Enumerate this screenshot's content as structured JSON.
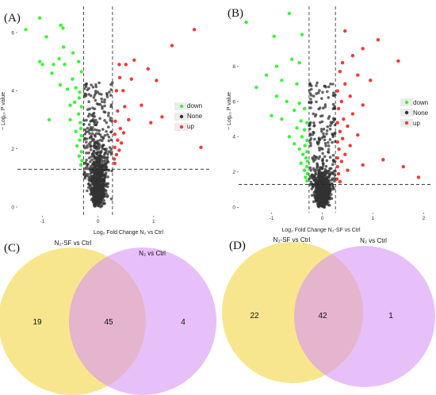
{
  "panels": {
    "A": "(A)",
    "B": "(B)",
    "C": "(C)",
    "D": "(D)"
  },
  "legend": {
    "items": [
      {
        "label": "down",
        "color": "#3df23d"
      },
      {
        "label": "None",
        "color": "#333333"
      },
      {
        "label": "up",
        "color": "#ee3b3b"
      }
    ]
  },
  "venn": {
    "C": {
      "left_title": "N₂-SF vs Ctrl",
      "right_title": "N₂ vs Ctrl",
      "left_only": "19",
      "both": "45",
      "right_only": "4"
    },
    "D": {
      "left_title": "N₂-SF vs Ctrl",
      "right_title": "N₂ vs Ctrl",
      "left_only": "22",
      "both": "42",
      "right_only": "1"
    }
  },
  "colors": {
    "venn_left": "#f7e27a",
    "venn_right": "#d794f5"
  },
  "chart_data": [
    {
      "type": "scatter",
      "panel": "A",
      "xlabel": "Log₂ Fold Change N₂ vs Ctrl",
      "ylabel": "− Log₁₀ P value",
      "xticks": [
        -1,
        0,
        1
      ],
      "yticks": [
        0,
        2,
        4,
        6
      ],
      "xlim": [
        -1.45,
        2.0
      ],
      "ylim": [
        -0.3,
        6.9
      ],
      "vlines": [
        -0.26,
        0.26
      ],
      "hline": 1.3,
      "legend_position": "right",
      "series": [
        {
          "name": "down",
          "points": [
            [
              -1.3,
              6.1
            ],
            [
              -1.05,
              6.5
            ],
            [
              -0.93,
              5.85
            ],
            [
              -0.67,
              6.25
            ],
            [
              -0.63,
              6.15
            ],
            [
              -0.62,
              5.5
            ],
            [
              -0.7,
              5.1
            ],
            [
              -0.45,
              5.3
            ],
            [
              -1.05,
              5.0
            ],
            [
              -1.0,
              4.9
            ],
            [
              -0.8,
              4.9
            ],
            [
              -0.6,
              4.9
            ],
            [
              -0.35,
              5.0
            ],
            [
              -0.83,
              4.6
            ],
            [
              -0.3,
              4.65
            ],
            [
              -0.46,
              4.4
            ],
            [
              -0.68,
              4.2
            ],
            [
              -0.4,
              4.1
            ],
            [
              -0.55,
              4.05
            ],
            [
              -0.33,
              3.95
            ],
            [
              -0.34,
              3.75
            ],
            [
              -0.5,
              3.5
            ],
            [
              -0.42,
              3.6
            ],
            [
              -0.3,
              3.45
            ],
            [
              -0.88,
              3.0
            ],
            [
              -0.35,
              3.2
            ],
            [
              -0.5,
              3.0
            ],
            [
              -0.32,
              2.9
            ],
            [
              -0.31,
              2.7
            ],
            [
              -0.4,
              2.6
            ],
            [
              -0.3,
              2.45
            ],
            [
              -0.33,
              2.3
            ],
            [
              -0.38,
              2.1
            ],
            [
              -0.3,
              1.9
            ],
            [
              -0.34,
              1.75
            ],
            [
              -0.29,
              1.6
            ],
            [
              -0.31,
              1.45
            ]
          ]
        },
        {
          "name": "up",
          "points": [
            [
              1.73,
              6.1
            ],
            [
              1.33,
              5.55
            ],
            [
              0.65,
              5.05
            ],
            [
              0.9,
              4.75
            ],
            [
              0.5,
              4.9
            ],
            [
              0.38,
              4.9
            ],
            [
              0.6,
              4.4
            ],
            [
              0.39,
              4.45
            ],
            [
              1.05,
              4.35
            ],
            [
              0.45,
              4.0
            ],
            [
              0.33,
              4.0
            ],
            [
              0.78,
              3.5
            ],
            [
              0.48,
              3.45
            ],
            [
              0.35,
              3.3
            ],
            [
              0.55,
              3.0
            ],
            [
              1.15,
              3.1
            ],
            [
              0.95,
              2.9
            ],
            [
              0.31,
              2.95
            ],
            [
              0.4,
              2.7
            ],
            [
              0.46,
              2.55
            ],
            [
              0.3,
              2.5
            ],
            [
              0.35,
              2.3
            ],
            [
              0.42,
              2.2
            ],
            [
              0.3,
              2.05
            ],
            [
              0.38,
              1.95
            ],
            [
              0.33,
              1.8
            ],
            [
              0.29,
              1.65
            ],
            [
              0.3,
              1.5
            ],
            [
              1.85,
              2.05
            ]
          ]
        }
      ]
    },
    {
      "type": "scatter",
      "panel": "B",
      "xlabel": "Log₂ Fold Change N₂-SF vs Ctrl",
      "ylabel": "− Log₁₀ P value",
      "xticks": [
        -1,
        0,
        1,
        2
      ],
      "yticks": [
        0,
        2,
        4,
        6,
        8
      ],
      "xlim": [
        -1.65,
        2.15
      ],
      "ylim": [
        -0.3,
        11.4
      ],
      "vlines": [
        -0.26,
        0.26
      ],
      "hline": 1.3,
      "legend_position": "right",
      "series": [
        {
          "name": "down",
          "points": [
            [
              -1.5,
              10.5
            ],
            [
              -0.65,
              11.0
            ],
            [
              -0.95,
              9.7
            ],
            [
              -0.4,
              9.8
            ],
            [
              -0.6,
              8.4
            ],
            [
              -0.9,
              8.0
            ],
            [
              -0.45,
              8.2
            ],
            [
              -1.1,
              7.5
            ],
            [
              -0.8,
              7.2
            ],
            [
              -0.5,
              7.0
            ],
            [
              -1.3,
              6.8
            ],
            [
              -0.9,
              6.3
            ],
            [
              -0.7,
              6.0
            ],
            [
              -0.45,
              5.9
            ],
            [
              -0.35,
              5.6
            ],
            [
              -0.55,
              5.5
            ],
            [
              -0.8,
              5.0
            ],
            [
              -1.0,
              5.2
            ],
            [
              -0.42,
              4.9
            ],
            [
              -0.3,
              4.8
            ],
            [
              -0.5,
              4.5
            ],
            [
              -0.35,
              4.4
            ],
            [
              -0.65,
              4.0
            ],
            [
              -0.4,
              4.0
            ],
            [
              -0.3,
              3.8
            ],
            [
              -0.55,
              3.6
            ],
            [
              -0.34,
              3.5
            ],
            [
              -0.45,
              3.3
            ],
            [
              -0.3,
              3.15
            ],
            [
              -0.38,
              3.0
            ],
            [
              -0.32,
              2.8
            ],
            [
              -0.29,
              2.6
            ],
            [
              -0.42,
              2.5
            ],
            [
              -0.3,
              2.3
            ],
            [
              -0.35,
              2.1
            ],
            [
              -0.29,
              1.9
            ],
            [
              -0.33,
              1.7
            ],
            [
              -0.3,
              1.5
            ]
          ]
        },
        {
          "name": "up",
          "points": [
            [
              0.45,
              10.0
            ],
            [
              1.1,
              9.5
            ],
            [
              0.8,
              9.0
            ],
            [
              0.6,
              8.6
            ],
            [
              1.5,
              8.3
            ],
            [
              0.4,
              8.2
            ],
            [
              0.35,
              7.7
            ],
            [
              0.7,
              7.5
            ],
            [
              0.95,
              7.2
            ],
            [
              0.45,
              7.0
            ],
            [
              0.3,
              6.6
            ],
            [
              0.55,
              6.3
            ],
            [
              0.38,
              6.0
            ],
            [
              0.8,
              5.8
            ],
            [
              0.32,
              5.6
            ],
            [
              0.6,
              5.3
            ],
            [
              0.42,
              5.0
            ],
            [
              0.3,
              4.8
            ],
            [
              0.5,
              4.6
            ],
            [
              0.35,
              4.3
            ],
            [
              0.7,
              4.1
            ],
            [
              0.4,
              3.9
            ],
            [
              0.3,
              3.7
            ],
            [
              0.55,
              3.5
            ],
            [
              0.33,
              3.3
            ],
            [
              0.45,
              3.0
            ],
            [
              0.3,
              2.8
            ],
            [
              0.38,
              2.6
            ],
            [
              0.8,
              2.4
            ],
            [
              0.3,
              2.3
            ],
            [
              0.5,
              2.1
            ],
            [
              0.32,
              1.9
            ],
            [
              1.2,
              2.7
            ],
            [
              1.6,
              2.3
            ],
            [
              1.9,
              1.7
            ],
            [
              0.29,
              1.6
            ],
            [
              0.35,
              1.45
            ]
          ]
        }
      ]
    }
  ]
}
